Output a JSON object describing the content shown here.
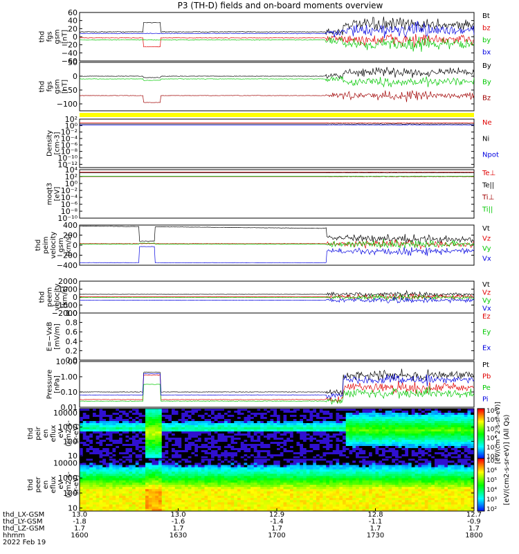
{
  "chart_data": {
    "type": "line",
    "title": "P3 (TH-D) fields and on-board moments overview",
    "x_axis": {
      "rows": [
        {
          "label": "thd_LX-GSM",
          "values": [
            "13.0",
            "13.0",
            "12.9",
            "12.8",
            "12.7"
          ]
        },
        {
          "label": "thd_LY-GSM",
          "values": [
            "-1.8",
            "-1.6",
            "-1.4",
            "-1.1",
            "-0.9"
          ]
        },
        {
          "label": "thd_LZ-GSM",
          "values": [
            "1.7",
            "1.7",
            "1.7",
            "1.7",
            "1.7"
          ]
        },
        {
          "label": "hhmm",
          "values": [
            "1600",
            "1630",
            "1700",
            "1730",
            "1800"
          ]
        }
      ],
      "date": "2022 Feb 19",
      "range": [
        0,
        120
      ]
    },
    "panels": [
      {
        "ylabel": [
          "thd",
          "fgs",
          "gsm",
          "[nT]"
        ],
        "ylim": [
          -60,
          60
        ],
        "scale": "linear",
        "ticks": [
          "60",
          "40",
          "20",
          "0",
          "−20",
          "−40",
          "−60"
        ],
        "tick_values": [
          60,
          40,
          20,
          0,
          -20,
          -40,
          -60
        ],
        "series": [
          {
            "name": "Bt",
            "color": "#000000"
          },
          {
            "name": "bz",
            "color": "#e00000"
          },
          {
            "name": "by",
            "color": "#00c800"
          },
          {
            "name": "bx",
            "color": "#0000e0"
          }
        ]
      },
      {
        "ylabel": [
          "thd",
          "fgs",
          "gsm",
          "[nT]"
        ],
        "ylim": [
          -125,
          50
        ],
        "scale": "linear",
        "ticks": [
          "50",
          "0",
          "−50",
          "−100"
        ],
        "tick_values": [
          50,
          0,
          -50,
          -100
        ],
        "series": [
          {
            "name": "By",
            "color": "#000000"
          },
          {
            "name": "By",
            "color": "#00c800"
          },
          {
            "name": "Bz",
            "color": "#a00000"
          }
        ]
      },
      {
        "ylabel": [
          "Density",
          "[cm-3]"
        ],
        "ylim": [
          -13,
          2
        ],
        "scale": "log",
        "ticks": [
          "10²",
          "10⁰",
          "10⁻²",
          "10⁻⁴",
          "10⁻⁶",
          "10⁻⁸",
          "10⁻¹⁰",
          "10⁻¹²"
        ],
        "tick_values": [
          2,
          0,
          -2,
          -4,
          -6,
          -8,
          -10,
          -12
        ],
        "series": [
          {
            "name": "Ne",
            "color": "#e00000"
          },
          {
            "name": "Ni",
            "color": "#000000"
          },
          {
            "name": "Npot",
            "color": "#0000e0"
          }
        ]
      },
      {
        "ylabel": [
          "moqt3",
          "[eV]"
        ],
        "ylim": [
          -10,
          4
        ],
        "scale": "log",
        "ticks": [
          "10⁴",
          "10²",
          "10⁰",
          "10⁻²",
          "10⁻⁴",
          "10⁻⁶",
          "10⁻⁸",
          "10⁻¹⁰"
        ],
        "tick_values": [
          4,
          2,
          0,
          -2,
          -4,
          -6,
          -8,
          -10
        ],
        "series": [
          {
            "name": "Te⊥",
            "color": "#e00000"
          },
          {
            "name": "Te||",
            "color": "#000000"
          },
          {
            "name": "Ti⊥",
            "color": "#a00000"
          },
          {
            "name": "Ti||",
            "color": "#00c800"
          }
        ]
      },
      {
        "ylabel": [
          "thd",
          "peim",
          "velocity",
          "gsm",
          "[km/s]"
        ],
        "ylim": [
          -400,
          400
        ],
        "scale": "linear",
        "ticks": [
          "400",
          "200",
          "0",
          "−200",
          "−400"
        ],
        "tick_values": [
          400,
          200,
          0,
          -200,
          -400
        ],
        "series": [
          {
            "name": "Vt",
            "color": "#000000"
          },
          {
            "name": "Vz",
            "color": "#e00000"
          },
          {
            "name": "Vy",
            "color": "#00c800"
          },
          {
            "name": "Vx",
            "color": "#0000e0"
          }
        ]
      },
      {
        "ylabel": [
          "thd",
          "peem",
          "velocity",
          "[km/s]"
        ],
        "ylim": [
          -2000,
          2000
        ],
        "scale": "linear",
        "ticks": [
          "2000",
          "1000",
          "0",
          "−1000",
          "−2000"
        ],
        "tick_values": [
          2000,
          1000,
          0,
          -1000,
          -2000
        ],
        "series": [
          {
            "name": "Vt",
            "color": "#000000"
          },
          {
            "name": "Vz",
            "color": "#e00000"
          },
          {
            "name": "Vy",
            "color": "#00c800"
          },
          {
            "name": "Vx",
            "color": "#0000e0"
          }
        ]
      },
      {
        "ylabel": [
          "E=−VxB",
          "[mV/m]"
        ],
        "ylim": [
          0,
          1
        ],
        "scale": "linear",
        "ticks": [
          "1.0",
          "0.8",
          "0.6",
          "0.4",
          "0.2",
          "0.0"
        ],
        "tick_values": [
          1,
          0.8,
          0.6,
          0.4,
          0.2,
          0
        ],
        "series": [
          {
            "name": "Ez",
            "color": "#e00000"
          },
          {
            "name": "Ey",
            "color": "#00c800"
          },
          {
            "name": "Ex",
            "color": "#0000e0"
          }
        ]
      },
      {
        "ylabel": [
          "Pressure",
          "[nPa]"
        ],
        "ylim": [
          -2,
          1
        ],
        "scale": "log",
        "ticks": [
          "10.00",
          "1.00",
          "0.10",
          "0.01"
        ],
        "tick_values": [
          1,
          0,
          -1,
          -2
        ],
        "series": [
          {
            "name": "Pt",
            "color": "#000000"
          },
          {
            "name": "Pb",
            "color": "#e00000"
          },
          {
            "name": "Pe",
            "color": "#00c800"
          },
          {
            "name": "Pi",
            "color": "#0000e0"
          }
        ]
      },
      {
        "ylabel": [
          "thd",
          "peir",
          "en",
          "eflux",
          "eV",
          "(cm2-s-",
          "sr-eV)"
        ],
        "ylim": [
          0.8,
          4.3
        ],
        "scale": "log",
        "ticks": [
          "10000",
          "1000",
          "100",
          "10"
        ],
        "tick_values": [
          4,
          3,
          2,
          1
        ]
      },
      {
        "ylabel": [
          "thd",
          "peer",
          "en",
          "eflux",
          "eV",
          "(cm2-s-",
          "sr-eV)"
        ],
        "ylim": [
          0.8,
          4.3
        ],
        "scale": "log",
        "ticks": [
          "10000",
          "1000",
          "100",
          "10"
        ],
        "tick_values": [
          4,
          3,
          2,
          1
        ]
      }
    ],
    "colorbars": [
      {
        "ticks": [
          "10⁸",
          "10⁶",
          "10⁵",
          "10⁴",
          "10³",
          "10²"
        ],
        "range_log": [
          2,
          8
        ]
      },
      {
        "ticks": [
          "10⁸",
          "10⁶",
          "10⁵",
          "10⁴",
          "10³",
          "10²"
        ],
        "range_log": [
          2,
          8
        ]
      }
    ],
    "colorbar_label": "[eV/(cm2-s-sr-eV)] (All Qs)",
    "overlay_label": "[eV/(cm^2-s-sr-eV)]"
  }
}
